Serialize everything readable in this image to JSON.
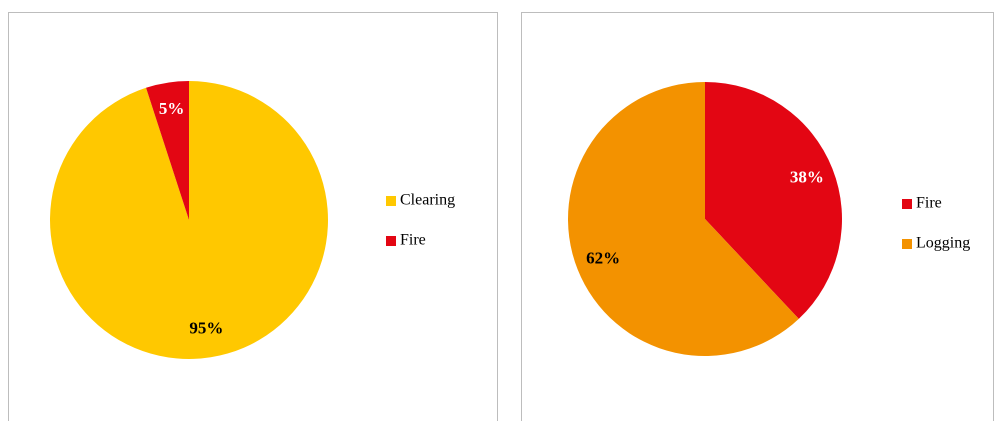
{
  "chart_data": [
    {
      "type": "pie",
      "categories": [
        "Clearing",
        "Fire"
      ],
      "values": [
        95,
        5
      ],
      "value_labels": [
        "95%",
        "5%"
      ],
      "colors": [
        "#FFC800",
        "#E30613"
      ],
      "label_colors": [
        "#000000",
        "#FFFFFF"
      ],
      "legend": "right"
    },
    {
      "type": "pie",
      "categories": [
        "Fire",
        "Logging"
      ],
      "values": [
        38,
        62
      ],
      "value_labels": [
        "38%",
        "62%"
      ],
      "colors": [
        "#E30613",
        "#F39200"
      ],
      "label_colors": [
        "#FFFFFF",
        "#000000"
      ],
      "legend": "right"
    }
  ]
}
